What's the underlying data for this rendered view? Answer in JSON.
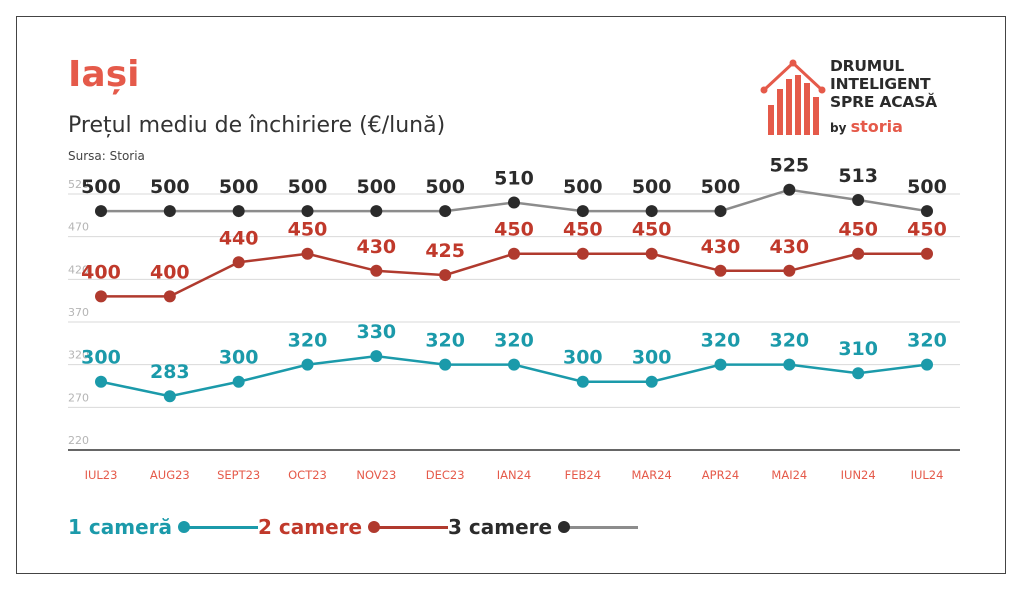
{
  "header": {
    "city": "Iași",
    "subtitle": "Prețul mediu de închiriere (€/lună)",
    "source": "Sursa: Storia"
  },
  "logo": {
    "line1": "DRUMUL",
    "line2": "INTELIGENT",
    "line3": "SPRE ACASĂ",
    "by": "by",
    "brand": "storia"
  },
  "colors": {
    "teal": "#1b9aaa",
    "red": "#c0392b",
    "gray": "#8c8c8c",
    "dark": "#2b2b2b",
    "accent": "#e55a4a"
  },
  "chart_data": {
    "type": "line",
    "x": [
      "IUL23",
      "AUG23",
      "SEPT23",
      "OCT23",
      "NOV23",
      "DEC23",
      "IAN24",
      "FEB24",
      "MAR24",
      "APR24",
      "MAI24",
      "IUN24",
      "IUL24"
    ],
    "ylim": [
      220,
      520
    ],
    "yticks": [
      220,
      270,
      320,
      370,
      420,
      470,
      520
    ],
    "grid": true,
    "legend_position": "bottom-left",
    "series": [
      {
        "name": "1 cameră",
        "values": [
          300,
          283,
          300,
          320,
          330,
          320,
          320,
          300,
          300,
          320,
          320,
          310,
          320
        ],
        "labels": [
          "300",
          "283",
          "300",
          "320",
          "330",
          "320",
          "320",
          "300",
          "300",
          "320",
          "320",
          "310",
          "320"
        ],
        "color": "#1b9aaa",
        "label_color": "#1b9aaa"
      },
      {
        "name": "2 camere",
        "values": [
          400,
          400,
          440,
          450,
          430,
          425,
          450,
          450,
          450,
          430,
          430,
          450,
          450
        ],
        "labels": [
          "400",
          "400",
          "440",
          "450",
          "430",
          "425",
          "450",
          "450",
          "450",
          "430",
          "430",
          "450",
          "450"
        ],
        "color": "#b03a2e",
        "label_color": "#c0392b"
      },
      {
        "name": "3 camere",
        "values": [
          500,
          500,
          500,
          500,
          500,
          500,
          510,
          500,
          500,
          500,
          525,
          513,
          500
        ],
        "labels": [
          "500",
          "500",
          "500",
          "500",
          "500",
          "500",
          "510",
          "500",
          "500",
          "500",
          "525",
          "513",
          "500"
        ],
        "color": "#8c8c8c",
        "label_color": "#2b2b2b"
      }
    ]
  }
}
